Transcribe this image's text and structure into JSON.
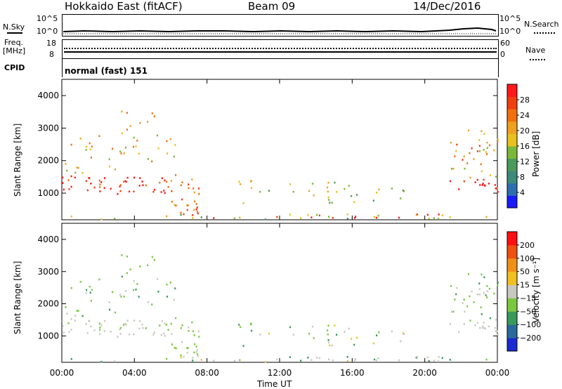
{
  "header": {
    "station": "Hokkaido East (fitACF)",
    "beam": "Beam 09",
    "date": "14/Dec/2016"
  },
  "top_panel": {
    "left_label": "N.Sky",
    "left_ticks": [
      "10^5",
      "10^0"
    ],
    "right_ticks": [
      "10^5",
      "10^0"
    ],
    "right_label": "N.Search"
  },
  "freq_panel": {
    "left_label_1": "Freq.",
    "left_label_2": "[MHz]",
    "left_ticks": [
      "18",
      "8"
    ],
    "right_ticks": [
      "60",
      "0"
    ],
    "right_label": "Nave",
    "cpid_label": "CPID",
    "cpid_value": "normal (fast) 151"
  },
  "chart_data": [
    {
      "type": "heatmap",
      "title": "",
      "ylabel": "Slant Range [km]",
      "xlabel": "",
      "ylim": [
        180,
        4500
      ],
      "yticks": [
        "4000",
        "3000",
        "2000",
        "1000"
      ],
      "xticks": [
        "00:00",
        "04:00",
        "08:00",
        "12:00",
        "16:00",
        "20:00",
        "00:00"
      ],
      "colorbar": {
        "label": "Power [dB]",
        "ticks": [
          "28",
          "24",
          "20",
          "16",
          "12",
          "8",
          "4"
        ],
        "colors": [
          "#1a1aff",
          "#2c6fb0",
          "#3c8a7a",
          "#4a9a5a",
          "#7ab83a",
          "#e8c020",
          "#f0a020",
          "#f07010",
          "#f04010",
          "#ff1a1a"
        ]
      }
    },
    {
      "type": "heatmap",
      "title": "",
      "ylabel": "Slant Range [km]",
      "xlabel": "Time UT",
      "ylim": [
        180,
        4500
      ],
      "yticks": [
        "4000",
        "3000",
        "2000",
        "1000"
      ],
      "xticks": [
        "00:00",
        "04:00",
        "08:00",
        "12:00",
        "16:00",
        "20:00",
        "00:00"
      ],
      "colorbar": {
        "label": "Velocity [m s⁻¹]",
        "ticks": [
          "200",
          "100",
          "50",
          "15",
          "−15",
          "−50",
          "−100",
          "−200"
        ],
        "colors": [
          "#1a2ad0",
          "#2a6a9a",
          "#3a9a5a",
          "#7ac840",
          "#c8c8c0",
          "#f0c020",
          "#f09018",
          "#f05010",
          "#ff1010"
        ]
      }
    }
  ]
}
